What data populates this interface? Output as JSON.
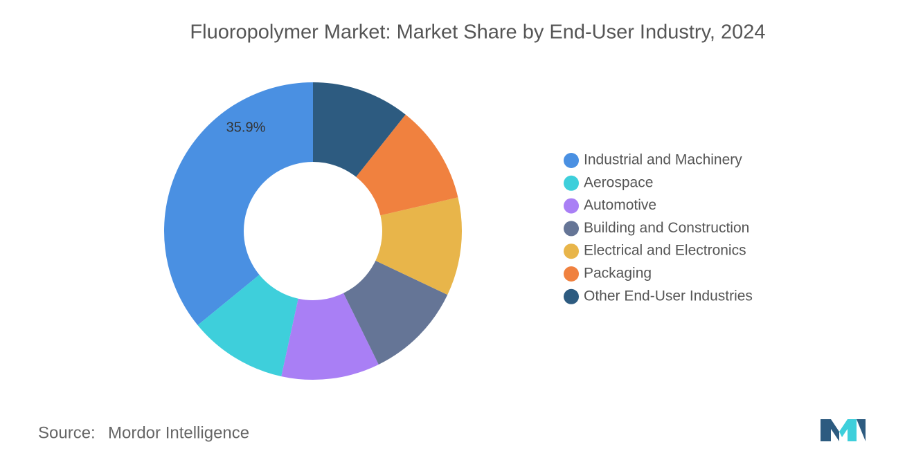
{
  "chart_data": {
    "type": "donut",
    "title": "Fluoropolymer Market: Market Share by End-User Industry, 2024",
    "series": [
      {
        "name": "Industrial and Machinery",
        "color": "#4a90e2",
        "value": 35.9,
        "value_label": "35.9%"
      },
      {
        "name": "Aerospace",
        "color": "#3ecfdb",
        "value": 10.68
      },
      {
        "name": "Automotive",
        "color": "#a97ff5",
        "value": 10.68
      },
      {
        "name": "Building and Construction",
        "color": "#657596",
        "value": 10.68
      },
      {
        "name": "Electrical and Electronics",
        "color": "#e8b54a",
        "value": 10.68
      },
      {
        "name": "Packaging",
        "color": "#f0813f",
        "value": 10.68
      },
      {
        "name": "Other End-User Industries",
        "color": "#2d5b80",
        "value": 10.68
      }
    ],
    "source_label": "Source:",
    "source": "Mordor Intelligence"
  }
}
